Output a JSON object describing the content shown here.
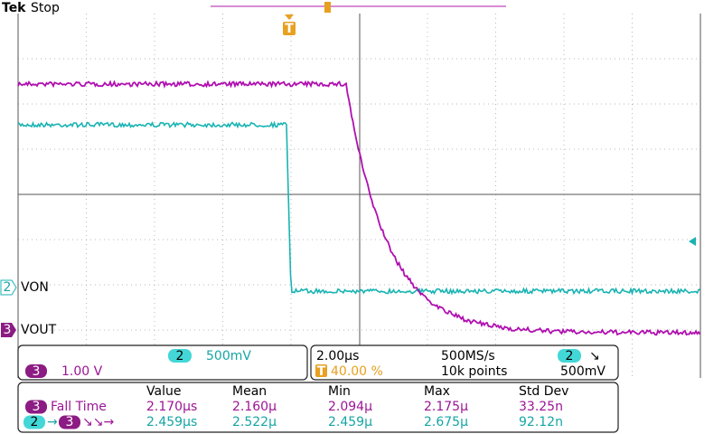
{
  "header": {
    "brand": "Tek",
    "status": "Stop"
  },
  "channel_labels": [
    {
      "badge": "2",
      "name": "VON"
    },
    {
      "badge": "3",
      "name": "VOUT"
    }
  ],
  "vertical_box": {
    "ch2": {
      "badge": "2",
      "scale": "500mV"
    },
    "ch3": {
      "badge": "3",
      "scale": "1.00 V"
    }
  },
  "horizontal_box": {
    "time_div": "2.00µs",
    "sample_rate": "500MS/s",
    "trigger_badge": "2",
    "trigger_slope": "↘",
    "trigger_marker": "T",
    "trigger_position": "40.00 %",
    "record_length": "10k points",
    "trigger_level": "500mV"
  },
  "measurements": {
    "headers": [
      "Value",
      "Mean",
      "Min",
      "Max",
      "Std Dev"
    ],
    "rows": [
      {
        "badge": "3",
        "label": "Fall Time",
        "cells": [
          "2.170µs",
          "2.160µ",
          "2.094µ",
          "2.175µ",
          "33.25n"
        ]
      },
      {
        "badge": "2",
        "arrow": "→",
        "badge2": "3",
        "label": "↘↘→",
        "cells": [
          "2.459µs",
          "2.522µ",
          "2.459µ",
          "2.675µ",
          "92.12n"
        ]
      }
    ]
  },
  "trigger_flag": "T"
}
